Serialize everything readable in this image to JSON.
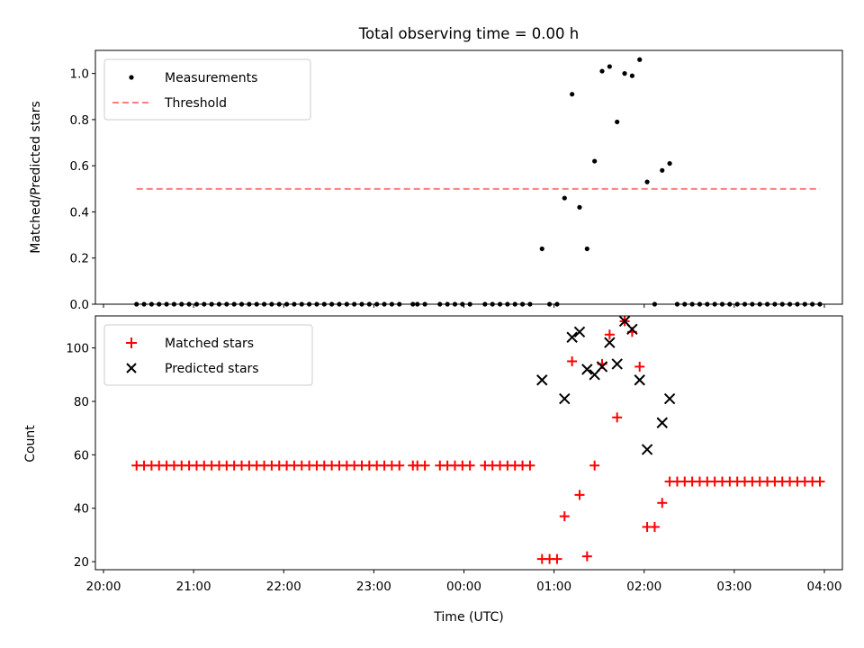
{
  "chart_data": [
    {
      "type": "scatter",
      "title": "Total observing time = 0.00 h",
      "ylabel": "Matched/Predicted stars",
      "xlabel": "",
      "ylim": [
        0,
        1.1
      ],
      "yticks": [
        "0.0",
        "0.2",
        "0.4",
        "0.6",
        "0.8",
        "1.0"
      ],
      "yticks_values": [
        0,
        0.2,
        0.4,
        0.6,
        0.8,
        1.0
      ],
      "legend": {
        "position": "upper-left",
        "entries": [
          "Measurements",
          "Threshold"
        ]
      },
      "series": [
        {
          "name": "Measurements",
          "color": "#000000",
          "marker": "dot",
          "points": [
            [
              "20:22",
              0
            ],
            [
              "20:27",
              0
            ],
            [
              "20:32",
              0
            ],
            [
              "20:37",
              0
            ],
            [
              "20:42",
              0
            ],
            [
              "20:47",
              0
            ],
            [
              "20:52",
              0
            ],
            [
              "20:57",
              0
            ],
            [
              "21:02",
              0
            ],
            [
              "21:07",
              0
            ],
            [
              "21:12",
              0
            ],
            [
              "21:17",
              0
            ],
            [
              "21:22",
              0
            ],
            [
              "21:27",
              0
            ],
            [
              "21:32",
              0
            ],
            [
              "21:37",
              0
            ],
            [
              "21:42",
              0
            ],
            [
              "21:47",
              0
            ],
            [
              "21:52",
              0
            ],
            [
              "21:57",
              0
            ],
            [
              "22:02",
              0
            ],
            [
              "22:07",
              0
            ],
            [
              "22:12",
              0
            ],
            [
              "22:17",
              0
            ],
            [
              "22:22",
              0
            ],
            [
              "22:27",
              0
            ],
            [
              "22:32",
              0
            ],
            [
              "22:37",
              0
            ],
            [
              "22:42",
              0
            ],
            [
              "22:47",
              0
            ],
            [
              "22:52",
              0
            ],
            [
              "22:57",
              0
            ],
            [
              "23:02",
              0
            ],
            [
              "23:07",
              0
            ],
            [
              "23:12",
              0
            ],
            [
              "23:17",
              0
            ],
            [
              "23:26",
              0
            ],
            [
              "23:29",
              0
            ],
            [
              "23:34",
              0
            ],
            [
              "23:44",
              0
            ],
            [
              "23:49",
              0
            ],
            [
              "23:54",
              0
            ],
            [
              "23:59",
              0
            ],
            [
              "00:04",
              0
            ],
            [
              "00:14",
              0
            ],
            [
              "00:19",
              0
            ],
            [
              "00:24",
              0
            ],
            [
              "00:29",
              0
            ],
            [
              "00:34",
              0
            ],
            [
              "00:39",
              0
            ],
            [
              "00:44",
              0
            ],
            [
              "00:52",
              0.24
            ],
            [
              "00:57",
              0
            ],
            [
              "01:02",
              0
            ],
            [
              "01:07",
              0.46
            ],
            [
              "01:12",
              0.91
            ],
            [
              "01:17",
              0.42
            ],
            [
              "01:22",
              0.24
            ],
            [
              "01:27",
              0.62
            ],
            [
              "01:32",
              1.01
            ],
            [
              "01:37",
              1.03
            ],
            [
              "01:42",
              0.79
            ],
            [
              "01:47",
              1.0
            ],
            [
              "01:52",
              0.99
            ],
            [
              "01:57",
              1.06
            ],
            [
              "02:02",
              0.53
            ],
            [
              "02:07",
              0
            ],
            [
              "02:12",
              0.58
            ],
            [
              "02:17",
              0.61
            ],
            [
              "02:22",
              0
            ],
            [
              "02:27",
              0
            ],
            [
              "02:32",
              0
            ],
            [
              "02:37",
              0
            ],
            [
              "02:42",
              0
            ],
            [
              "02:47",
              0
            ],
            [
              "02:52",
              0
            ],
            [
              "02:57",
              0
            ],
            [
              "03:02",
              0
            ],
            [
              "03:07",
              0
            ],
            [
              "03:12",
              0
            ],
            [
              "03:17",
              0
            ],
            [
              "03:22",
              0
            ],
            [
              "03:27",
              0
            ],
            [
              "03:32",
              0
            ],
            [
              "03:37",
              0
            ],
            [
              "03:42",
              0
            ],
            [
              "03:47",
              0
            ],
            [
              "03:52",
              0
            ],
            [
              "03:57",
              0
            ]
          ]
        },
        {
          "name": "Threshold",
          "color": "#ff7f7f",
          "style": "dashed",
          "points": [
            [
              "20:22",
              0.5
            ],
            [
              "03:57",
              0.5
            ]
          ]
        }
      ]
    },
    {
      "type": "scatter",
      "title": "",
      "ylabel": "Count",
      "xlabel": "Time (UTC)",
      "ylim": [
        17,
        112
      ],
      "yticks": [
        "20",
        "40",
        "60",
        "80",
        "100"
      ],
      "yticks_values": [
        20,
        40,
        60,
        80,
        100
      ],
      "xlim": [
        "20:00",
        "04:12"
      ],
      "xticks": [
        "20:00",
        "21:00",
        "22:00",
        "23:00",
        "00:00",
        "01:00",
        "02:00",
        "03:00",
        "04:00"
      ],
      "legend": {
        "position": "upper-left",
        "entries": [
          "Matched stars",
          "Predicted stars"
        ]
      },
      "series": [
        {
          "name": "Matched stars",
          "color": "#ff0000",
          "marker": "plus",
          "points": [
            [
              "20:22",
              56
            ],
            [
              "20:27",
              56
            ],
            [
              "20:32",
              56
            ],
            [
              "20:37",
              56
            ],
            [
              "20:42",
              56
            ],
            [
              "20:47",
              56
            ],
            [
              "20:52",
              56
            ],
            [
              "20:57",
              56
            ],
            [
              "21:02",
              56
            ],
            [
              "21:07",
              56
            ],
            [
              "21:12",
              56
            ],
            [
              "21:17",
              56
            ],
            [
              "21:22",
              56
            ],
            [
              "21:27",
              56
            ],
            [
              "21:32",
              56
            ],
            [
              "21:37",
              56
            ],
            [
              "21:42",
              56
            ],
            [
              "21:47",
              56
            ],
            [
              "21:52",
              56
            ],
            [
              "21:57",
              56
            ],
            [
              "22:02",
              56
            ],
            [
              "22:07",
              56
            ],
            [
              "22:12",
              56
            ],
            [
              "22:17",
              56
            ],
            [
              "22:22",
              56
            ],
            [
              "22:27",
              56
            ],
            [
              "22:32",
              56
            ],
            [
              "22:37",
              56
            ],
            [
              "22:42",
              56
            ],
            [
              "22:47",
              56
            ],
            [
              "22:52",
              56
            ],
            [
              "22:57",
              56
            ],
            [
              "23:02",
              56
            ],
            [
              "23:07",
              56
            ],
            [
              "23:12",
              56
            ],
            [
              "23:17",
              56
            ],
            [
              "23:26",
              56
            ],
            [
              "23:29",
              56
            ],
            [
              "23:34",
              56
            ],
            [
              "23:44",
              56
            ],
            [
              "23:49",
              56
            ],
            [
              "23:54",
              56
            ],
            [
              "23:59",
              56
            ],
            [
              "00:04",
              56
            ],
            [
              "00:14",
              56
            ],
            [
              "00:19",
              56
            ],
            [
              "00:24",
              56
            ],
            [
              "00:29",
              56
            ],
            [
              "00:34",
              56
            ],
            [
              "00:39",
              56
            ],
            [
              "00:44",
              56
            ],
            [
              "00:52",
              21
            ],
            [
              "00:57",
              21
            ],
            [
              "01:02",
              21
            ],
            [
              "01:07",
              37
            ],
            [
              "01:12",
              95
            ],
            [
              "01:17",
              45
            ],
            [
              "01:22",
              22
            ],
            [
              "01:27",
              56
            ],
            [
              "01:32",
              94
            ],
            [
              "01:37",
              105
            ],
            [
              "01:42",
              74
            ],
            [
              "01:47",
              110
            ],
            [
              "01:52",
              106
            ],
            [
              "01:57",
              93
            ],
            [
              "02:02",
              33
            ],
            [
              "02:07",
              33
            ],
            [
              "02:12",
              42
            ],
            [
              "02:17",
              50
            ],
            [
              "02:22",
              50
            ],
            [
              "02:27",
              50
            ],
            [
              "02:32",
              50
            ],
            [
              "02:37",
              50
            ],
            [
              "02:42",
              50
            ],
            [
              "02:47",
              50
            ],
            [
              "02:52",
              50
            ],
            [
              "02:57",
              50
            ],
            [
              "03:02",
              50
            ],
            [
              "03:07",
              50
            ],
            [
              "03:12",
              50
            ],
            [
              "03:17",
              50
            ],
            [
              "03:22",
              50
            ],
            [
              "03:27",
              50
            ],
            [
              "03:32",
              50
            ],
            [
              "03:37",
              50
            ],
            [
              "03:42",
              50
            ],
            [
              "03:47",
              50
            ],
            [
              "03:52",
              50
            ],
            [
              "03:57",
              50
            ]
          ]
        },
        {
          "name": "Predicted stars",
          "color": "#000000",
          "marker": "x",
          "points": [
            [
              "00:52",
              88
            ],
            [
              "01:07",
              81
            ],
            [
              "01:12",
              104
            ],
            [
              "01:17",
              106
            ],
            [
              "01:22",
              92
            ],
            [
              "01:27",
              90
            ],
            [
              "01:32",
              93
            ],
            [
              "01:37",
              102
            ],
            [
              "01:42",
              94
            ],
            [
              "01:47",
              110
            ],
            [
              "01:52",
              107
            ],
            [
              "01:57",
              88
            ],
            [
              "02:02",
              62
            ],
            [
              "02:12",
              72
            ],
            [
              "02:17",
              81
            ]
          ]
        }
      ]
    }
  ]
}
